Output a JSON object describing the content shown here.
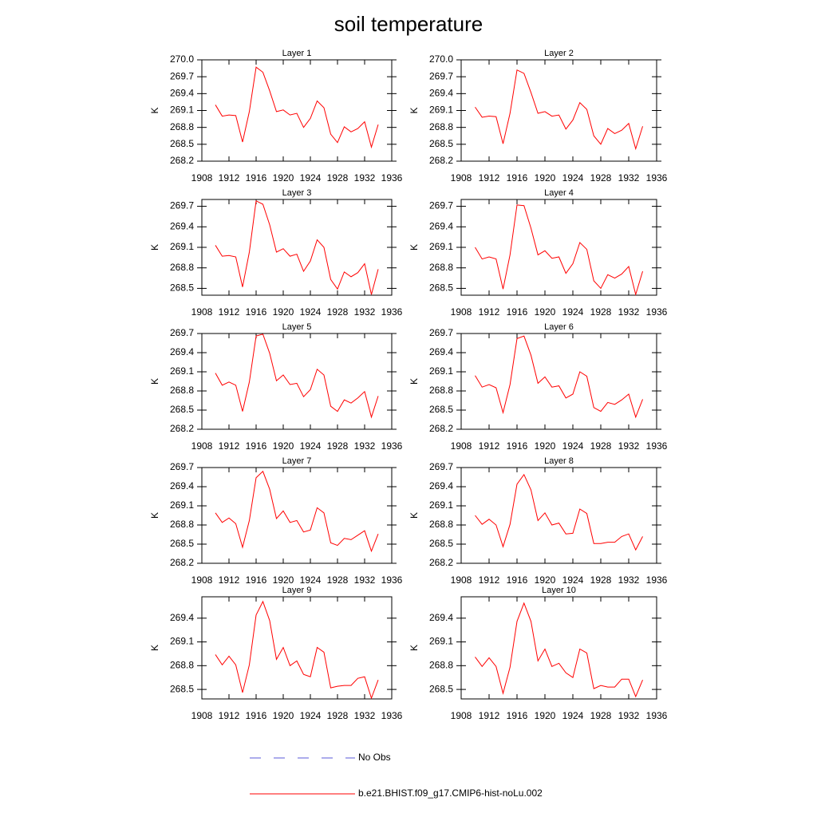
{
  "title": "soil temperature",
  "legend": [
    {
      "name": "No Obs",
      "color": "#5a5ad8",
      "dash": true
    },
    {
      "name": "b.e21.BHIST.f09_g17.CMIP6-hist-noLu.002",
      "color": "#ff0000",
      "dash": false
    }
  ],
  "chart_data": [
    {
      "type": "line",
      "title": "Layer 1",
      "y_label": "K",
      "xlim": [
        1908,
        1936
      ],
      "xticks": [
        1908,
        1912,
        1916,
        1920,
        1924,
        1928,
        1932,
        1936
      ],
      "ylim": [
        268.2,
        270.0
      ],
      "yticks": [
        268.2,
        268.5,
        268.8,
        269.1,
        269.4,
        269.7,
        {
          "value": 270,
          "label": "270.0"
        }
      ],
      "x": [
        1910,
        1911,
        1912,
        1913,
        1914,
        1915,
        1916,
        1917,
        1918,
        1919,
        1920,
        1921,
        1922,
        1923,
        1924,
        1925,
        1926,
        1927,
        1928,
        1929,
        1930,
        1931,
        1932,
        1933,
        1934
      ],
      "series": [
        {
          "color": "#ff0000",
          "values": [
            269.2,
            269.0,
            269.02,
            269.01,
            268.54,
            269.08,
            269.87,
            269.78,
            269.45,
            269.08,
            269.11,
            269.02,
            269.05,
            268.8,
            268.96,
            269.27,
            269.15,
            268.68,
            268.53,
            268.81,
            268.72,
            268.78,
            268.9,
            268.45,
            268.85
          ]
        }
      ]
    },
    {
      "type": "line",
      "title": "Layer 2",
      "y_label": "K",
      "xlim": [
        1908,
        1936
      ],
      "xticks": [
        1908,
        1912,
        1916,
        1920,
        1924,
        1928,
        1932,
        1936
      ],
      "ylim": [
        268.2,
        270.0
      ],
      "yticks": [
        268.2,
        268.5,
        268.8,
        269.1,
        269.4,
        269.7,
        {
          "value": 270,
          "label": "270.0"
        }
      ],
      "x": [
        1910,
        1911,
        1912,
        1913,
        1914,
        1915,
        1916,
        1917,
        1918,
        1919,
        1920,
        1921,
        1922,
        1923,
        1924,
        1925,
        1926,
        1927,
        1928,
        1929,
        1930,
        1931,
        1932,
        1933,
        1934
      ],
      "series": [
        {
          "color": "#ff0000",
          "values": [
            269.16,
            268.98,
            269.0,
            268.99,
            268.51,
            269.05,
            269.82,
            269.76,
            269.42,
            269.05,
            269.08,
            269.0,
            269.02,
            268.77,
            268.93,
            269.24,
            269.12,
            268.65,
            268.5,
            268.78,
            268.69,
            268.75,
            268.87,
            268.42,
            268.82
          ]
        }
      ]
    },
    {
      "type": "line",
      "title": "Layer 3",
      "y_label": "K",
      "xlim": [
        1908,
        1936
      ],
      "xticks": [
        1908,
        1912,
        1916,
        1920,
        1924,
        1928,
        1932,
        1936
      ],
      "ylim": [
        268.4,
        269.8
      ],
      "yticks": [
        268.5,
        268.8,
        269.1,
        269.4,
        269.7
      ],
      "x": [
        1910,
        1911,
        1912,
        1913,
        1914,
        1915,
        1916,
        1917,
        1918,
        1919,
        1920,
        1921,
        1922,
        1923,
        1924,
        1925,
        1926,
        1927,
        1928,
        1929,
        1930,
        1931,
        1932,
        1933,
        1934
      ],
      "series": [
        {
          "color": "#ff0000",
          "values": [
            269.13,
            268.97,
            268.98,
            268.96,
            268.52,
            269.03,
            269.78,
            269.73,
            269.43,
            269.03,
            269.08,
            268.97,
            269.0,
            268.75,
            268.9,
            269.21,
            269.1,
            268.63,
            268.49,
            268.74,
            268.67,
            268.73,
            268.86,
            268.41,
            268.78
          ]
        }
      ]
    },
    {
      "type": "line",
      "title": "Layer 4",
      "y_label": "K",
      "xlim": [
        1908,
        1936
      ],
      "xticks": [
        1908,
        1912,
        1916,
        1920,
        1924,
        1928,
        1932,
        1936
      ],
      "ylim": [
        268.4,
        269.8
      ],
      "yticks": [
        268.5,
        268.8,
        269.1,
        269.4,
        269.7
      ],
      "x": [
        1910,
        1911,
        1912,
        1913,
        1914,
        1915,
        1916,
        1917,
        1918,
        1919,
        1920,
        1921,
        1922,
        1923,
        1924,
        1925,
        1926,
        1927,
        1928,
        1929,
        1930,
        1931,
        1932,
        1933,
        1934
      ],
      "series": [
        {
          "color": "#ff0000",
          "values": [
            269.1,
            268.93,
            268.96,
            268.93,
            268.49,
            268.99,
            269.72,
            269.71,
            269.38,
            268.99,
            269.05,
            268.94,
            268.96,
            268.72,
            268.86,
            269.17,
            269.07,
            268.61,
            268.5,
            268.7,
            268.65,
            268.71,
            268.82,
            268.41,
            268.75
          ]
        }
      ]
    },
    {
      "type": "line",
      "title": "Layer 5",
      "y_label": "K",
      "xlim": [
        1908,
        1936
      ],
      "xticks": [
        1908,
        1912,
        1916,
        1920,
        1924,
        1928,
        1932,
        1936
      ],
      "ylim": [
        268.2,
        269.7
      ],
      "yticks": [
        268.2,
        268.5,
        268.8,
        269.1,
        269.4,
        269.7
      ],
      "x": [
        1910,
        1911,
        1912,
        1913,
        1914,
        1915,
        1916,
        1917,
        1918,
        1919,
        1920,
        1921,
        1922,
        1923,
        1924,
        1925,
        1926,
        1927,
        1928,
        1929,
        1930,
        1931,
        1932,
        1933,
        1934
      ],
      "series": [
        {
          "color": "#ff0000",
          "values": [
            269.08,
            268.89,
            268.94,
            268.89,
            268.48,
            268.94,
            269.66,
            269.69,
            269.39,
            268.96,
            269.05,
            268.9,
            268.92,
            268.71,
            268.82,
            269.14,
            269.05,
            268.56,
            268.48,
            268.66,
            268.61,
            268.69,
            268.79,
            268.39,
            268.72
          ]
        }
      ]
    },
    {
      "type": "line",
      "title": "Layer 6",
      "y_label": "K",
      "xlim": [
        1908,
        1936
      ],
      "xticks": [
        1908,
        1912,
        1916,
        1920,
        1924,
        1928,
        1932,
        1936
      ],
      "ylim": [
        268.2,
        269.7
      ],
      "yticks": [
        268.2,
        268.5,
        268.8,
        269.1,
        269.4,
        269.7
      ],
      "x": [
        1910,
        1911,
        1912,
        1913,
        1914,
        1915,
        1916,
        1917,
        1918,
        1919,
        1920,
        1921,
        1922,
        1923,
        1924,
        1925,
        1926,
        1927,
        1928,
        1929,
        1930,
        1931,
        1932,
        1933,
        1934
      ],
      "series": [
        {
          "color": "#ff0000",
          "values": [
            269.04,
            268.86,
            268.9,
            268.85,
            268.46,
            268.9,
            269.62,
            269.66,
            269.36,
            268.92,
            269.02,
            268.86,
            268.88,
            268.69,
            268.75,
            269.1,
            269.03,
            268.54,
            268.48,
            268.62,
            268.59,
            268.66,
            268.75,
            268.39,
            268.67
          ]
        }
      ]
    },
    {
      "type": "line",
      "title": "Layer 7",
      "y_label": "K",
      "xlim": [
        1908,
        1936
      ],
      "xticks": [
        1908,
        1912,
        1916,
        1920,
        1924,
        1928,
        1932,
        1936
      ],
      "ylim": [
        268.2,
        269.7
      ],
      "yticks": [
        268.2,
        268.5,
        268.8,
        269.1,
        269.4,
        269.7
      ],
      "x": [
        1910,
        1911,
        1912,
        1913,
        1914,
        1915,
        1916,
        1917,
        1918,
        1919,
        1920,
        1921,
        1922,
        1923,
        1924,
        1925,
        1926,
        1927,
        1928,
        1929,
        1930,
        1931,
        1932,
        1933,
        1934
      ],
      "series": [
        {
          "color": "#ff0000",
          "values": [
            268.99,
            268.84,
            268.91,
            268.82,
            268.45,
            268.87,
            269.54,
            269.64,
            269.36,
            268.9,
            269.02,
            268.84,
            268.87,
            268.69,
            268.72,
            269.07,
            268.99,
            268.52,
            268.48,
            268.59,
            268.57,
            268.64,
            268.71,
            268.39,
            268.66
          ]
        }
      ]
    },
    {
      "type": "line",
      "title": "Layer 8",
      "y_label": "K",
      "xlim": [
        1908,
        1936
      ],
      "xticks": [
        1908,
        1912,
        1916,
        1920,
        1924,
        1928,
        1932,
        1936
      ],
      "ylim": [
        268.2,
        269.7
      ],
      "yticks": [
        268.2,
        268.5,
        268.8,
        269.1,
        269.4,
        269.7
      ],
      "x": [
        1910,
        1911,
        1912,
        1913,
        1914,
        1915,
        1916,
        1917,
        1918,
        1919,
        1920,
        1921,
        1922,
        1923,
        1924,
        1925,
        1926,
        1927,
        1928,
        1929,
        1930,
        1931,
        1932,
        1933,
        1934
      ],
      "series": [
        {
          "color": "#ff0000",
          "values": [
            268.95,
            268.81,
            268.89,
            268.8,
            268.46,
            268.81,
            269.44,
            269.59,
            269.35,
            268.87,
            268.99,
            268.8,
            268.83,
            268.66,
            268.67,
            269.05,
            268.98,
            268.51,
            268.51,
            268.53,
            268.53,
            268.62,
            268.66,
            268.41,
            268.62
          ]
        }
      ]
    },
    {
      "type": "line",
      "title": "Layer 9",
      "y_label": "K",
      "xlim": [
        1908,
        1936
      ],
      "xticks": [
        1908,
        1912,
        1916,
        1920,
        1924,
        1928,
        1932,
        1936
      ],
      "ylim": [
        268.38,
        269.67
      ],
      "yticks": [
        268.5,
        268.8,
        269.1,
        269.4
      ],
      "x": [
        1910,
        1911,
        1912,
        1913,
        1914,
        1915,
        1916,
        1917,
        1918,
        1919,
        1920,
        1921,
        1922,
        1923,
        1924,
        1925,
        1926,
        1927,
        1928,
        1929,
        1930,
        1931,
        1932,
        1933,
        1934
      ],
      "series": [
        {
          "color": "#ff0000",
          "values": [
            268.94,
            268.81,
            268.92,
            268.81,
            268.46,
            268.81,
            269.44,
            269.61,
            269.37,
            268.88,
            269.03,
            268.8,
            268.86,
            268.69,
            268.66,
            269.03,
            268.97,
            268.52,
            268.54,
            268.55,
            268.55,
            268.64,
            268.66,
            268.39,
            268.62
          ]
        }
      ]
    },
    {
      "type": "line",
      "title": "Layer 10",
      "y_label": "K",
      "xlim": [
        1908,
        1936
      ],
      "xticks": [
        1908,
        1912,
        1916,
        1920,
        1924,
        1928,
        1932,
        1936
      ],
      "ylim": [
        268.38,
        269.67
      ],
      "yticks": [
        268.5,
        268.8,
        269.1,
        269.4
      ],
      "x": [
        1910,
        1911,
        1912,
        1913,
        1914,
        1915,
        1916,
        1917,
        1918,
        1919,
        1920,
        1921,
        1922,
        1923,
        1924,
        1925,
        1926,
        1927,
        1928,
        1929,
        1930,
        1931,
        1932,
        1933,
        1934
      ],
      "series": [
        {
          "color": "#ff0000",
          "values": [
            268.91,
            268.79,
            268.9,
            268.79,
            268.45,
            268.78,
            269.36,
            269.59,
            269.36,
            268.86,
            269.01,
            268.79,
            268.83,
            268.71,
            268.65,
            269.01,
            268.96,
            268.51,
            268.55,
            268.53,
            268.53,
            268.63,
            268.63,
            268.41,
            268.62
          ]
        }
      ]
    }
  ]
}
